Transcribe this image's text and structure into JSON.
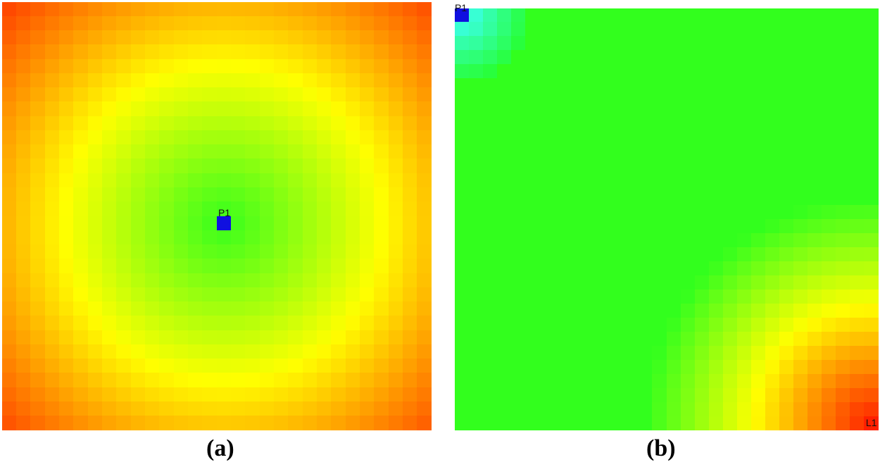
{
  "panels": [
    {
      "id": "a",
      "caption": "(a)",
      "grid": {
        "cols": 30,
        "rows": 30
      },
      "markers": [
        {
          "label": "P1",
          "col": 15,
          "row": 15,
          "color": "#1010e0"
        }
      ]
    },
    {
      "id": "b",
      "caption": "(b)",
      "grid": {
        "cols": 30,
        "rows": 30
      },
      "markers": [
        {
          "label": "P1",
          "col": 0,
          "row": 0,
          "color": "#1010e0"
        },
        {
          "label": "L1",
          "col": 29,
          "row": 29,
          "color": "#ff2000"
        }
      ]
    }
  ],
  "colors": {
    "background": "#ffffff",
    "min": "#1010e0",
    "low": "#20ff20",
    "mid": "#ffff00",
    "high": "#ff2000"
  }
}
